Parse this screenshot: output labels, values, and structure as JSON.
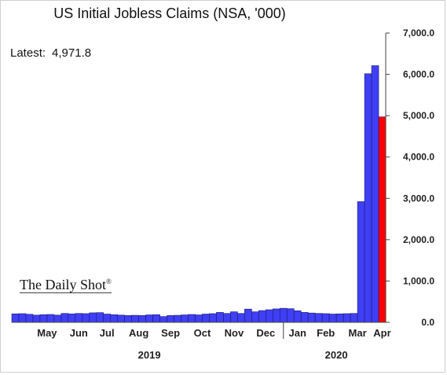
{
  "latest": {
    "label": "Latest:",
    "value": "4,971.8"
  },
  "watermark": {
    "text": "The Daily Shot",
    "mark": "®"
  },
  "chart_data": {
    "type": "bar",
    "title": "US Initial Jobless Claims (NSA, '000)",
    "xlabel": "",
    "ylabel": "",
    "ylim": [
      0,
      7000
    ],
    "y_ticks": [
      "0.0",
      "1,000.0",
      "2,000.0",
      "3,000.0",
      "4,000.0",
      "5,000.0",
      "6,000.0",
      "7,000.0"
    ],
    "y_tick_values": [
      0,
      1000,
      2000,
      3000,
      4000,
      5000,
      6000,
      7000
    ],
    "y_axis_side": "right",
    "grid": false,
    "month_labels": [
      "May",
      "Jun",
      "Jul",
      "Aug",
      "Sep",
      "Oct",
      "Nov",
      "Dec",
      "Jan",
      "Feb",
      "Mar",
      "Apr"
    ],
    "year_labels": [
      "2019",
      "2020"
    ],
    "values": [
      205,
      210,
      195,
      175,
      185,
      190,
      175,
      215,
      205,
      215,
      210,
      230,
      235,
      200,
      185,
      175,
      165,
      170,
      165,
      180,
      185,
      140,
      165,
      170,
      180,
      190,
      180,
      200,
      210,
      240,
      215,
      255,
      215,
      320,
      255,
      285,
      305,
      325,
      340,
      330,
      280,
      240,
      225,
      215,
      210,
      200,
      205,
      210,
      215,
      2920,
      6015,
      6210,
      4972
    ],
    "colors": {
      "bar": "#3f3ff5",
      "latest_bar": "#ff0000",
      "bar_edge": "#1a1a6e"
    }
  }
}
